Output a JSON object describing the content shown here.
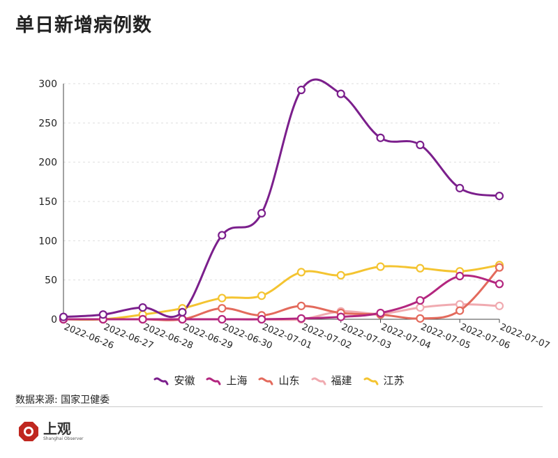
{
  "title": "单日新增病例数",
  "source": "数据来源: 国家卫健委",
  "logo": {
    "name": "上观",
    "subtitle": "Shanghai Observer"
  },
  "chart_data": {
    "type": "line",
    "title": "单日新增病例数",
    "xlabel": "",
    "ylabel": "",
    "ylim": [
      0,
      300
    ],
    "yticks": [
      0,
      50,
      100,
      150,
      200,
      250,
      300
    ],
    "grid": "horizontal dashed",
    "legend_position": "bottom",
    "categories": [
      "2022-06-26",
      "2022-06-27",
      "2022-06-28",
      "2022-06-29",
      "2022-06-30",
      "2022-07-01",
      "2022-07-02",
      "2022-07-03",
      "2022-07-04",
      "2022-07-05",
      "2022-07-06",
      "2022-07-07"
    ],
    "series": [
      {
        "name": "安徽",
        "color": "#7b1f8c",
        "values": [
          3,
          6,
          15,
          9,
          107,
          135,
          292,
          287,
          231,
          222,
          167,
          157
        ]
      },
      {
        "name": "上海",
        "color": "#b3267f",
        "values": [
          0,
          0,
          0,
          0,
          0,
          0,
          1,
          3,
          8,
          24,
          55,
          45
        ]
      },
      {
        "name": "山东",
        "color": "#e36a5c",
        "values": [
          0,
          0,
          0,
          0,
          14,
          5,
          17,
          8,
          6,
          1,
          11,
          66
        ]
      },
      {
        "name": "福建",
        "color": "#f0aab0",
        "values": [
          0,
          0,
          0,
          0,
          0,
          0,
          0,
          10,
          7,
          15,
          19,
          17
        ]
      },
      {
        "name": "江苏",
        "color": "#f4c431",
        "values": [
          0,
          0,
          6,
          14,
          27,
          30,
          60,
          56,
          67,
          65,
          61,
          69
        ]
      }
    ]
  }
}
